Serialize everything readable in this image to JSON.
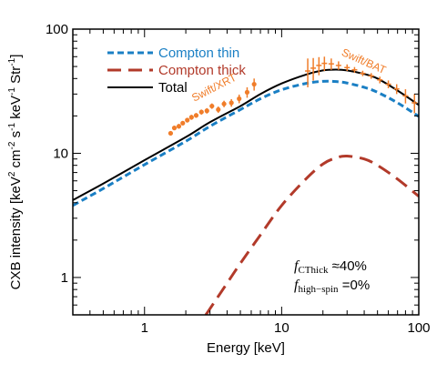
{
  "chart_data": {
    "type": "line",
    "xlabel": "Energy [keV]",
    "ylabel_parts": [
      "CXB intensity [keV",
      "2",
      " cm",
      "-2",
      " s",
      "-1",
      " keV",
      "-1",
      " Str",
      "-1",
      "]"
    ],
    "x_scale": "log",
    "y_scale": "log",
    "xlim": [
      0.3,
      100
    ],
    "ylim": [
      0.5,
      100
    ],
    "x_ticks": [
      {
        "value": 1,
        "label": "1"
      },
      {
        "value": 10,
        "label": "10"
      },
      {
        "value": 100,
        "label": "100"
      }
    ],
    "y_ticks": [
      {
        "value": 1,
        "label": "1"
      },
      {
        "value": 10,
        "label": "10"
      },
      {
        "value": 100,
        "label": "100"
      }
    ],
    "legend": {
      "placement": "top-left",
      "entries": [
        {
          "label": "Compton thin",
          "color": "#1a7fc4",
          "style": "short-dash"
        },
        {
          "label": "Compton thick",
          "color": "#b23a2a",
          "style": "long-dash"
        },
        {
          "label": "Total",
          "color": "#000000",
          "style": "solid"
        }
      ]
    },
    "series": [
      {
        "name": "Compton thin",
        "color": "#1a7fc4",
        "x": [
          0.3,
          0.5,
          1,
          2,
          3,
          5,
          7,
          10,
          15,
          20,
          25,
          30,
          40,
          50,
          70,
          100
        ],
        "y": [
          3.8,
          5.2,
          8.1,
          12.5,
          16.5,
          22.5,
          27.5,
          32.5,
          36.5,
          38.0,
          37.8,
          36.8,
          34.0,
          31.0,
          25.5,
          19.8
        ]
      },
      {
        "name": "Compton thick",
        "color": "#b23a2a",
        "x": [
          2.8,
          3,
          4,
          5,
          7,
          10,
          15,
          20,
          25,
          30,
          40,
          50,
          70,
          100
        ],
        "y": [
          0.5,
          0.56,
          0.9,
          1.3,
          2.2,
          3.8,
          6.2,
          8.2,
          9.2,
          9.5,
          9.0,
          8.0,
          6.2,
          4.5
        ]
      },
      {
        "name": "Total",
        "color": "#000000",
        "x": [
          0.3,
          0.5,
          1,
          2,
          3,
          5,
          7,
          10,
          15,
          20,
          25,
          30,
          40,
          50,
          70,
          100
        ],
        "y": [
          4.2,
          5.7,
          8.8,
          13.5,
          17.8,
          24.0,
          30.0,
          36.5,
          43.0,
          46.5,
          47.2,
          46.5,
          43.5,
          40.0,
          32.0,
          24.5
        ]
      }
    ],
    "data_sets": [
      {
        "name": "Swift/XRT",
        "color": "#f07d2a",
        "points": [
          {
            "x": 1.55,
            "y": 14.5,
            "err": 0.6
          },
          {
            "x": 1.65,
            "y": 16.0,
            "err": 0.6
          },
          {
            "x": 1.78,
            "y": 16.5,
            "err": 0.7
          },
          {
            "x": 1.9,
            "y": 17.5,
            "err": 0.7
          },
          {
            "x": 2.05,
            "y": 18.5,
            "err": 0.8
          },
          {
            "x": 2.2,
            "y": 19.5,
            "err": 0.9
          },
          {
            "x": 2.38,
            "y": 20.2,
            "err": 0.9
          },
          {
            "x": 2.6,
            "y": 21.5,
            "err": 1.0
          },
          {
            "x": 2.85,
            "y": 22.0,
            "err": 1.1
          },
          {
            "x": 3.1,
            "y": 24.0,
            "err": 1.2
          },
          {
            "x": 3.45,
            "y": 22.5,
            "err": 1.3
          },
          {
            "x": 3.8,
            "y": 25.0,
            "err": 1.5
          },
          {
            "x": 4.3,
            "y": 25.5,
            "err": 1.8
          },
          {
            "x": 4.9,
            "y": 27.5,
            "err": 2.2
          },
          {
            "x": 5.6,
            "y": 31.0,
            "err": 3.0
          },
          {
            "x": 6.3,
            "y": 36.0,
            "err": 4.0
          }
        ]
      },
      {
        "name": "Swift/BAT",
        "color": "#f07d2a",
        "points": [
          {
            "x": 15.5,
            "y": 46.0,
            "err": 12.0
          },
          {
            "x": 17.0,
            "y": 48.5,
            "err": 10.0
          },
          {
            "x": 18.7,
            "y": 51.0,
            "err": 8.5
          },
          {
            "x": 20.5,
            "y": 53.0,
            "err": 7.0
          },
          {
            "x": 23.0,
            "y": 52.5,
            "err": 5.5
          },
          {
            "x": 26.0,
            "y": 51.0,
            "err": 4.0
          },
          {
            "x": 30.0,
            "y": 49.0,
            "err": 3.0
          },
          {
            "x": 34.0,
            "y": 47.0,
            "err": 2.5
          },
          {
            "x": 39.0,
            "y": 44.0,
            "err": 2.2
          },
          {
            "x": 45.0,
            "y": 42.0,
            "err": 2.2
          },
          {
            "x": 52.0,
            "y": 39.0,
            "err": 2.4
          },
          {
            "x": 60.0,
            "y": 36.0,
            "err": 2.6
          },
          {
            "x": 69.0,
            "y": 33.0,
            "err": 3.0
          },
          {
            "x": 80.0,
            "y": 29.0,
            "err": 3.8
          },
          {
            "x": 93.0,
            "y": 25.5,
            "err": 4.5
          }
        ]
      }
    ],
    "annotations": [
      {
        "symbol": "f",
        "sub": "CThick",
        "text": " ≈40%"
      },
      {
        "symbol": "f",
        "sub": "high−spin",
        "text": " =0%"
      }
    ]
  }
}
